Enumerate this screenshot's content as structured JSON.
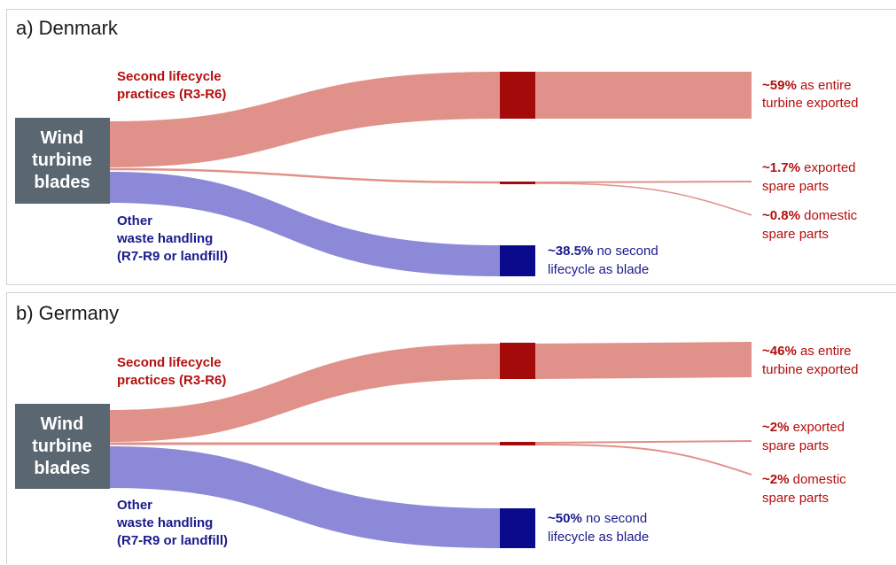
{
  "colors": {
    "second_flow": "#e0928a",
    "second_node": "#a50a0a",
    "other_flow": "#8c89d9",
    "other_node": "#0a0a8c",
    "source_box": "#5a6670",
    "red_text": "#b40f0f",
    "blue_text": "#1a1a8c"
  },
  "panels": [
    {
      "title": "a) Denmark",
      "source": [
        "Wind",
        "turbine",
        "blades"
      ],
      "second_label": [
        "Second lifecycle",
        "practices (R3-R6)"
      ],
      "other_label": [
        "Other",
        "waste handling",
        "(R7-R9 or landfill)"
      ],
      "outputs": {
        "entire": {
          "value": "~59%",
          "text1": "as entire",
          "text2": "turbine exported"
        },
        "exported": {
          "value": "~1.7%",
          "text1": "exported",
          "text2": "spare parts"
        },
        "domestic": {
          "value": "~0.8%",
          "text1": "domestic",
          "text2": "spare parts"
        },
        "none": {
          "value": "~38.5%",
          "text1": "no second",
          "text2": "lifecycle as blade"
        }
      }
    },
    {
      "title": "b) Germany",
      "source": [
        "Wind",
        "turbine",
        "blades"
      ],
      "second_label": [
        "Second lifecycle",
        "practices (R3-R6)"
      ],
      "other_label": [
        "Other",
        "waste handling",
        "(R7-R9 or landfill)"
      ],
      "outputs": {
        "entire": {
          "value": "~46%",
          "text1": "as entire",
          "text2": "turbine exported"
        },
        "exported": {
          "value": "~2%",
          "text1": "exported",
          "text2": "spare parts"
        },
        "domestic": {
          "value": "~2%",
          "text1": "domestic",
          "text2": "spare parts"
        },
        "none": {
          "value": "~50%",
          "text1": "no second",
          "text2": "lifecycle as blade"
        }
      }
    }
  ]
}
